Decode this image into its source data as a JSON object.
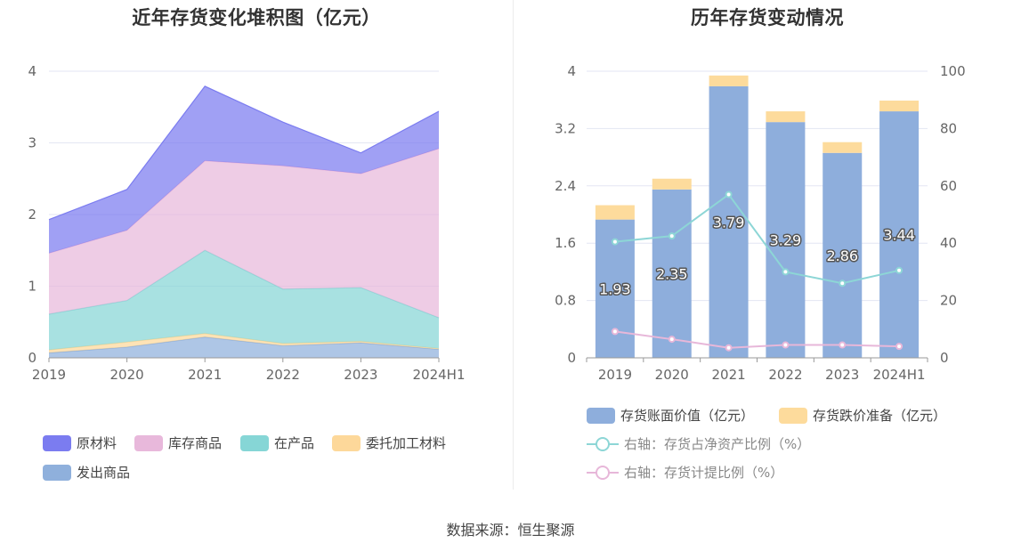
{
  "source_text": "数据来源：恒生聚源",
  "chart_data": [
    {
      "type": "area",
      "stacked": true,
      "title": "近年存货变化堆积图（亿元）",
      "categories": [
        "2019",
        "2020",
        "2021",
        "2022",
        "2023",
        "2024H1"
      ],
      "ylim": [
        0,
        4
      ],
      "yticks": [
        "0",
        "1",
        "2",
        "3",
        "4"
      ],
      "grid": true,
      "legend_position": "bottom",
      "series": [
        {
          "name": "发出商品",
          "color": "#8fb0dc",
          "values": [
            0.07,
            0.15,
            0.29,
            0.17,
            0.21,
            0.12
          ]
        },
        {
          "name": "委托加工材料",
          "color": "#fdd89a",
          "values": [
            0.04,
            0.07,
            0.05,
            0.03,
            0.02,
            0.01
          ]
        },
        {
          "name": "在产品",
          "color": "#86d6d6",
          "values": [
            0.5,
            0.58,
            1.16,
            0.76,
            0.75,
            0.43
          ]
        },
        {
          "name": "库存商品",
          "color": "#e8b8db",
          "values": [
            0.85,
            0.98,
            1.25,
            1.72,
            1.59,
            2.36
          ]
        },
        {
          "name": "原材料",
          "color": "#7b7cf0",
          "values": [
            0.47,
            0.57,
            1.04,
            0.61,
            0.29,
            0.52
          ]
        }
      ],
      "legend_order": [
        "原材料",
        "库存商品",
        "在产品",
        "委托加工材料",
        "发出商品"
      ]
    },
    {
      "type": "bar",
      "stacked": true,
      "title": "历年存货变动情况",
      "categories": [
        "2019",
        "2020",
        "2021",
        "2022",
        "2023",
        "2024H1"
      ],
      "ylim": [
        0,
        4
      ],
      "yticks": [
        "0",
        "0.8",
        "1.6",
        "2.4",
        "3.2",
        "4"
      ],
      "y2lim": [
        0,
        100
      ],
      "y2ticks": [
        "0",
        "20",
        "40",
        "60",
        "80",
        "100"
      ],
      "grid": true,
      "legend_position": "bottom",
      "bars": [
        {
          "name": "存货账面价值（亿元）",
          "color": "#8eaedc",
          "values": [
            1.93,
            2.35,
            3.79,
            3.29,
            2.86,
            3.44
          ],
          "labels": [
            "1.93",
            "2.35",
            "3.79",
            "3.29",
            "2.86",
            "3.44"
          ]
        },
        {
          "name": "存货跌价准备（亿元）",
          "color": "#fddb9c",
          "values": [
            0.2,
            0.15,
            0.15,
            0.15,
            0.15,
            0.15
          ]
        }
      ],
      "lines": [
        {
          "name": "右轴：存货占净资产比例（%）",
          "color": "#8dd6d6",
          "axis": "right",
          "values": [
            40.5,
            42.5,
            57,
            30,
            26,
            30.5
          ]
        },
        {
          "name": "右轴：存货计提比例（%）",
          "color": "#e7b7d9",
          "axis": "right",
          "values": [
            9.2,
            6.5,
            3.5,
            4.5,
            4.5,
            4
          ]
        }
      ]
    }
  ]
}
